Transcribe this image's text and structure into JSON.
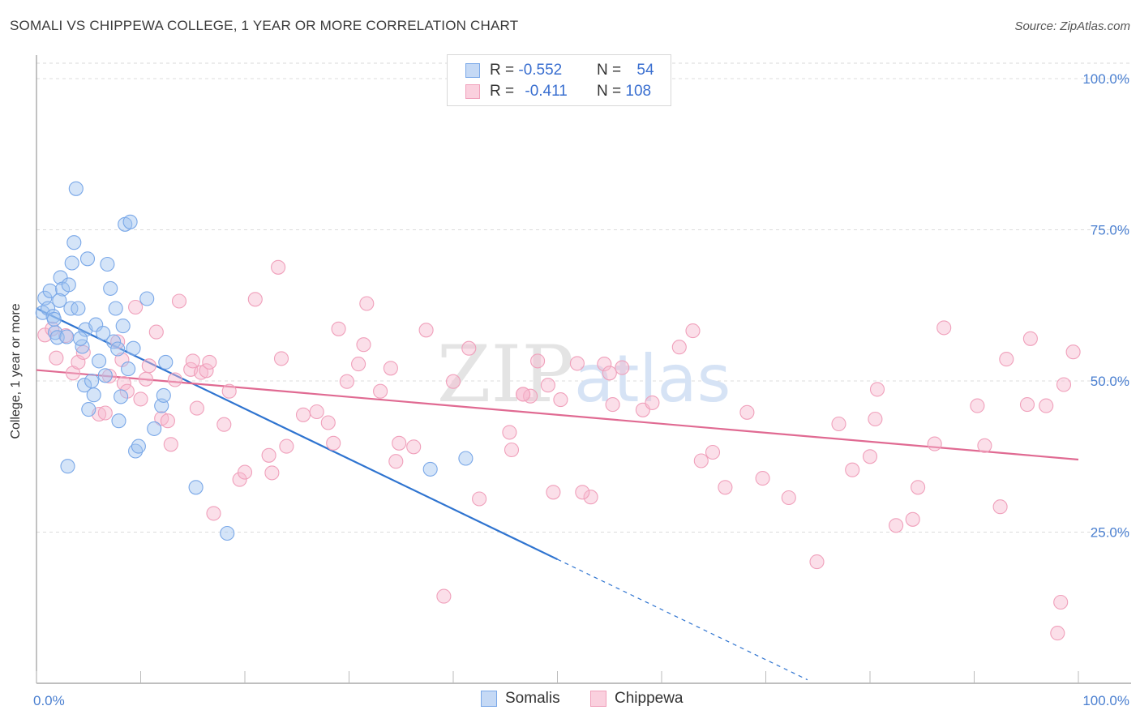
{
  "title": "SOMALI VS CHIPPEWA COLLEGE, 1 YEAR OR MORE CORRELATION CHART",
  "source": "Source: ZipAtlas.com",
  "colors": {
    "somalis": "#7aa8e8",
    "somalis_line": "#2f74d0",
    "chippewa": "#f0a0bb",
    "chippewa_line": "#e06a92",
    "accent": "#4a7fd0"
  },
  "legend": {
    "rows": [
      {
        "series": "Somalis",
        "r_label": "R = ",
        "r_value": "-0.552",
        "n_label": "N = ",
        "n_value": "54"
      },
      {
        "series": "Chippewa",
        "r_label": "R = ",
        "r_value": "-0.411",
        "n_label": "N = ",
        "n_value": "108"
      }
    ]
  },
  "bottom_legend": [
    "Somalis",
    "Chippewa"
  ],
  "watermark": "ZIPatlas",
  "chart_data": {
    "type": "scatter",
    "title": "SOMALI VS CHIPPEWA COLLEGE, 1 YEAR OR MORE CORRELATION CHART",
    "xlabel": "",
    "ylabel": "College, 1 year or more",
    "xlim": [
      0,
      100
    ],
    "ylim": [
      0,
      100
    ],
    "x_tick_labels": [
      "0.0%",
      "100.0%"
    ],
    "y_tick_labels": [
      "25.0%",
      "50.0%",
      "75.0%",
      "100.0%"
    ],
    "y_ticks": [
      25,
      50,
      75,
      100
    ],
    "grid": true,
    "series": [
      {
        "name": "Somalis",
        "r": -0.552,
        "n": 54,
        "trend": {
          "x0": 0,
          "y0": 62,
          "x1": 50,
          "y1": 20.5,
          "dashed_to_x": 74
        },
        "points": [
          [
            0.6,
            61.3
          ],
          [
            0.8,
            63.7
          ],
          [
            1.1,
            62.0
          ],
          [
            1.3,
            64.9
          ],
          [
            1.6,
            60.7
          ],
          [
            1.8,
            58.0
          ],
          [
            2.0,
            57.2
          ],
          [
            2.3,
            67.1
          ],
          [
            2.5,
            65.2
          ],
          [
            2.9,
            57.3
          ],
          [
            3.1,
            65.9
          ],
          [
            3.3,
            62.0
          ],
          [
            3.4,
            69.5
          ],
          [
            3.6,
            72.9
          ],
          [
            3.8,
            81.8
          ],
          [
            4.0,
            62.0
          ],
          [
            4.4,
            55.7
          ],
          [
            4.6,
            49.3
          ],
          [
            4.7,
            58.5
          ],
          [
            4.9,
            70.2
          ],
          [
            5.0,
            45.3
          ],
          [
            5.3,
            50.0
          ],
          [
            5.5,
            47.7
          ],
          [
            5.7,
            59.3
          ],
          [
            6.0,
            53.3
          ],
          [
            6.4,
            57.9
          ],
          [
            6.8,
            69.3
          ],
          [
            7.1,
            65.3
          ],
          [
            7.4,
            56.5
          ],
          [
            7.6,
            62.0
          ],
          [
            7.8,
            55.3
          ],
          [
            7.9,
            43.4
          ],
          [
            8.1,
            47.4
          ],
          [
            8.3,
            59.1
          ],
          [
            8.5,
            75.9
          ],
          [
            8.8,
            52.0
          ],
          [
            9.0,
            76.3
          ],
          [
            9.3,
            55.4
          ],
          [
            9.5,
            38.4
          ],
          [
            9.8,
            39.2
          ],
          [
            10.6,
            63.6
          ],
          [
            12.0,
            45.9
          ],
          [
            12.2,
            47.6
          ],
          [
            12.4,
            53.1
          ],
          [
            15.3,
            32.4
          ],
          [
            18.3,
            24.8
          ],
          [
            37.8,
            35.4
          ],
          [
            41.2,
            37.2
          ],
          [
            1.7,
            60.2
          ],
          [
            4.2,
            57.0
          ],
          [
            6.6,
            50.9
          ],
          [
            11.3,
            42.1
          ],
          [
            3.0,
            35.9
          ],
          [
            2.2,
            63.3
          ]
        ]
      },
      {
        "name": "Chippewa",
        "r": -0.411,
        "n": 108,
        "trend": {
          "x0": 0,
          "y0": 51.8,
          "x1": 100,
          "y1": 37.0
        },
        "points": [
          [
            0.8,
            57.6
          ],
          [
            1.5,
            58.6
          ],
          [
            1.9,
            53.8
          ],
          [
            2.8,
            57.5
          ],
          [
            3.5,
            51.3
          ],
          [
            4.0,
            53.1
          ],
          [
            4.5,
            54.7
          ],
          [
            6.0,
            44.5
          ],
          [
            6.6,
            44.7
          ],
          [
            7.0,
            50.8
          ],
          [
            7.8,
            56.5
          ],
          [
            8.2,
            53.5
          ],
          [
            8.4,
            49.6
          ],
          [
            8.7,
            48.3
          ],
          [
            9.5,
            62.2
          ],
          [
            10.0,
            47.0
          ],
          [
            10.5,
            50.3
          ],
          [
            10.8,
            52.5
          ],
          [
            11.5,
            58.1
          ],
          [
            12.0,
            43.8
          ],
          [
            12.6,
            43.4
          ],
          [
            12.9,
            39.5
          ],
          [
            13.3,
            50.2
          ],
          [
            13.7,
            63.2
          ],
          [
            14.8,
            51.9
          ],
          [
            15.0,
            53.3
          ],
          [
            15.4,
            45.5
          ],
          [
            15.8,
            51.4
          ],
          [
            16.3,
            51.7
          ],
          [
            16.6,
            53.1
          ],
          [
            17.0,
            28.1
          ],
          [
            18.0,
            42.8
          ],
          [
            18.5,
            48.3
          ],
          [
            19.5,
            33.7
          ],
          [
            20.0,
            34.9
          ],
          [
            21.0,
            63.5
          ],
          [
            22.3,
            37.7
          ],
          [
            22.6,
            34.8
          ],
          [
            23.2,
            68.8
          ],
          [
            23.5,
            53.7
          ],
          [
            24.0,
            39.2
          ],
          [
            25.6,
            44.4
          ],
          [
            26.9,
            44.9
          ],
          [
            28.0,
            43.1
          ],
          [
            28.5,
            39.7
          ],
          [
            29.0,
            58.6
          ],
          [
            29.8,
            49.9
          ],
          [
            30.9,
            52.8
          ],
          [
            31.4,
            56.0
          ],
          [
            31.7,
            62.8
          ],
          [
            33.0,
            48.3
          ],
          [
            34.5,
            36.7
          ],
          [
            34.8,
            39.7
          ],
          [
            36.2,
            39.1
          ],
          [
            37.4,
            58.4
          ],
          [
            39.1,
            14.4
          ],
          [
            40.0,
            49.9
          ],
          [
            41.5,
            55.4
          ],
          [
            42.5,
            30.5
          ],
          [
            45.4,
            41.5
          ],
          [
            45.6,
            38.6
          ],
          [
            46.7,
            47.8
          ],
          [
            47.4,
            47.5
          ],
          [
            48.1,
            53.3
          ],
          [
            49.1,
            49.3
          ],
          [
            49.6,
            31.6
          ],
          [
            50.3,
            46.9
          ],
          [
            51.9,
            52.9
          ],
          [
            53.2,
            30.8
          ],
          [
            54.5,
            52.8
          ],
          [
            55.0,
            51.3
          ],
          [
            55.3,
            46.1
          ],
          [
            58.2,
            45.2
          ],
          [
            59.1,
            46.4
          ],
          [
            61.7,
            55.6
          ],
          [
            63.0,
            58.3
          ],
          [
            63.8,
            36.8
          ],
          [
            64.9,
            38.2
          ],
          [
            66.1,
            32.4
          ],
          [
            68.2,
            44.8
          ],
          [
            69.7,
            33.9
          ],
          [
            72.2,
            30.7
          ],
          [
            74.9,
            20.1
          ],
          [
            77.0,
            42.9
          ],
          [
            78.3,
            35.3
          ],
          [
            80.0,
            37.5
          ],
          [
            80.5,
            43.7
          ],
          [
            80.7,
            48.6
          ],
          [
            82.5,
            26.1
          ],
          [
            84.1,
            27.1
          ],
          [
            84.6,
            32.4
          ],
          [
            86.2,
            39.6
          ],
          [
            87.1,
            58.8
          ],
          [
            90.3,
            45.9
          ],
          [
            91.0,
            39.3
          ],
          [
            92.5,
            29.2
          ],
          [
            93.1,
            53.6
          ],
          [
            95.1,
            46.1
          ],
          [
            95.4,
            57.0
          ],
          [
            96.9,
            45.9
          ],
          [
            98.3,
            13.4
          ],
          [
            98.6,
            49.4
          ],
          [
            99.5,
            54.8
          ],
          [
            98.0,
            8.3
          ],
          [
            46.7,
            47.8
          ],
          [
            52.4,
            31.6
          ],
          [
            56.2,
            52.2
          ],
          [
            34.0,
            52.1
          ]
        ]
      }
    ]
  }
}
